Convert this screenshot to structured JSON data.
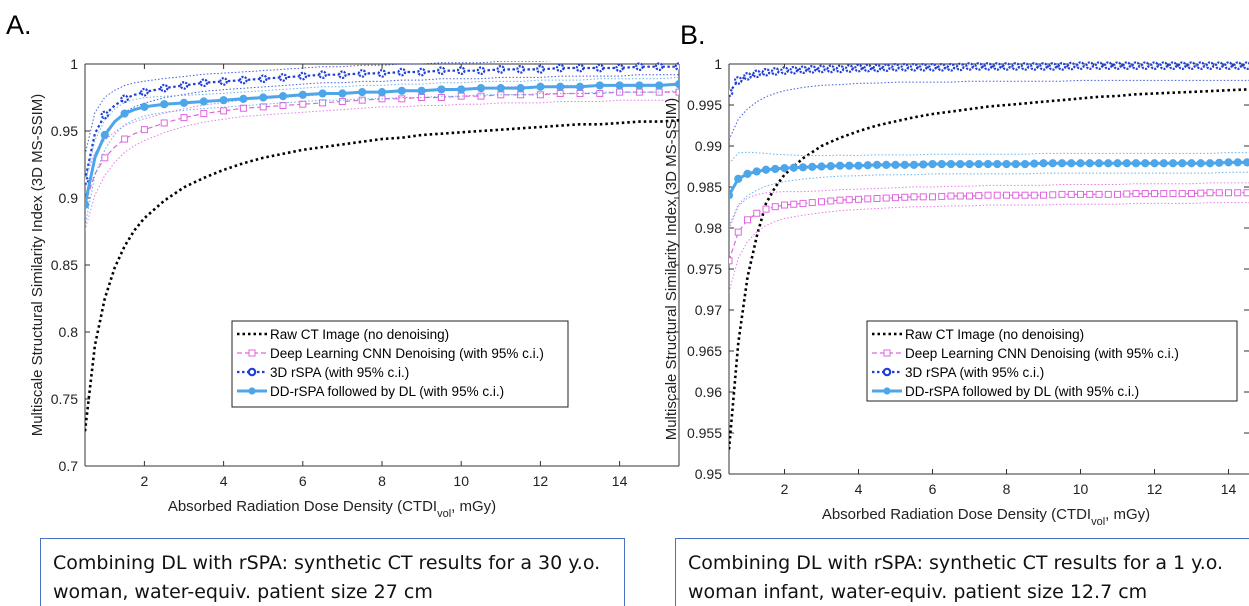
{
  "colors": {
    "raw": "#000000",
    "dl": "#e066e0",
    "rspa": "#1f3fd8",
    "ddrspa": "#4da6ea",
    "caption_border": "#4a72c4"
  },
  "chart_data": [
    {
      "panel": "A.",
      "type": "line",
      "xlabel": "Absorbed Radiation Dose Density (CTDI_vol, mGy)",
      "xlabel_main": "Absorbed Radiation Dose Density (CTDI",
      "xlabel_sub": "vol",
      "xlabel_tail": ", mGy)",
      "ylabel": "Multiscale Structural Similarity Index (3D MS-SSIM)",
      "xlim": [
        0.5,
        15.5
      ],
      "ylim": [
        0.7,
        1.0
      ],
      "xticks": [
        2,
        4,
        6,
        8,
        10,
        12,
        14
      ],
      "xtick_labels": [
        "2",
        "4",
        "6",
        "8",
        "10",
        "12",
        "14"
      ],
      "yticks": [
        0.7,
        0.75,
        0.8,
        0.85,
        0.9,
        0.95,
        1.0
      ],
      "ytick_labels": [
        "0.7",
        "0.75",
        "0.8",
        "0.85",
        "0.9",
        "0.95",
        "1"
      ],
      "legend_position": "lower-right",
      "x": [
        0.5,
        0.75,
        1.0,
        1.25,
        1.5,
        1.75,
        2.0,
        2.5,
        3.0,
        3.5,
        4.0,
        4.5,
        5.0,
        5.5,
        6.0,
        6.5,
        7.0,
        7.5,
        8.0,
        8.5,
        9.0,
        9.5,
        10.0,
        10.5,
        11.0,
        11.5,
        12.0,
        12.5,
        13.0,
        13.5,
        14.0,
        14.5,
        15.0,
        15.5
      ],
      "series": [
        {
          "name": "Raw CT Image (no denoising)",
          "style": "raw",
          "values": [
            0.726,
            0.79,
            0.825,
            0.848,
            0.864,
            0.876,
            0.885,
            0.898,
            0.908,
            0.915,
            0.921,
            0.926,
            0.93,
            0.933,
            0.936,
            0.938,
            0.94,
            0.942,
            0.944,
            0.945,
            0.947,
            0.948,
            0.949,
            0.95,
            0.951,
            0.952,
            0.953,
            0.954,
            0.955,
            0.955,
            0.956,
            0.957,
            0.957,
            0.958
          ]
        },
        {
          "name": "Deep Learning CNN Denoising (with 95% c.i.)",
          "style": "dl",
          "values": [
            0.895,
            0.918,
            0.93,
            0.938,
            0.944,
            0.948,
            0.951,
            0.956,
            0.96,
            0.963,
            0.965,
            0.967,
            0.968,
            0.969,
            0.97,
            0.971,
            0.972,
            0.973,
            0.974,
            0.974,
            0.975,
            0.975,
            0.976,
            0.976,
            0.977,
            0.977,
            0.977,
            0.978,
            0.978,
            0.978,
            0.979,
            0.979,
            0.979,
            0.979
          ],
          "ci": 0.006
        },
        {
          "name": "3D rSPA (with 95% c.i.)",
          "style": "rspa",
          "values": [
            0.913,
            0.948,
            0.962,
            0.969,
            0.974,
            0.977,
            0.979,
            0.982,
            0.984,
            0.986,
            0.987,
            0.988,
            0.989,
            0.99,
            0.991,
            0.992,
            0.992,
            0.993,
            0.993,
            0.994,
            0.994,
            0.995,
            0.995,
            0.995,
            0.996,
            0.996,
            0.996,
            0.997,
            0.997,
            0.997,
            0.997,
            0.998,
            0.998,
            0.998
          ],
          "ci": 0.006
        },
        {
          "name": "DD-rSPA followed by DL (with 95% c.i.)",
          "style": "ddrspa",
          "values": [
            0.895,
            0.93,
            0.947,
            0.957,
            0.963,
            0.966,
            0.968,
            0.97,
            0.971,
            0.972,
            0.973,
            0.974,
            0.975,
            0.976,
            0.977,
            0.978,
            0.978,
            0.979,
            0.979,
            0.98,
            0.98,
            0.981,
            0.981,
            0.982,
            0.982,
            0.982,
            0.983,
            0.983,
            0.983,
            0.984,
            0.984,
            0.984,
            0.984,
            0.985
          ],
          "ci": 0.005
        }
      ]
    },
    {
      "panel": "B.",
      "type": "line",
      "xlabel": "Absorbed Radiation Dose Density (CTDI_vol, mGy)",
      "xlabel_main": "Absorbed Radiation Dose Density (CTDI",
      "xlabel_sub": "vol",
      "xlabel_tail": ", mGy)",
      "ylabel": "Multiscale Structural Similarity Index (3D MS-SSIM)",
      "xlim": [
        0.5,
        15.5
      ],
      "ylim": [
        0.95,
        1.0
      ],
      "xticks": [
        2,
        4,
        6,
        8,
        10,
        12,
        14
      ],
      "xtick_labels": [
        "2",
        "4",
        "6",
        "8",
        "10",
        "12",
        "14"
      ],
      "yticks": [
        0.95,
        0.955,
        0.96,
        0.965,
        0.97,
        0.975,
        0.98,
        0.985,
        0.99,
        0.995,
        1.0
      ],
      "ytick_labels": [
        "0.95",
        "0.955",
        "0.96",
        "0.965",
        "0.97",
        "0.975",
        "0.98",
        "0.985",
        "0.99",
        "0.995",
        "1"
      ],
      "legend_position": "lower-right",
      "x": [
        0.5,
        0.75,
        1.0,
        1.25,
        1.5,
        1.75,
        2.0,
        2.5,
        3.0,
        3.5,
        4.0,
        4.5,
        5.0,
        5.5,
        6.0,
        6.5,
        7.0,
        7.5,
        8.0,
        8.5,
        9.0,
        9.5,
        10.0,
        10.5,
        11.0,
        11.5,
        12.0,
        12.5,
        13.0,
        13.5,
        14.0,
        14.5,
        15.0,
        15.5
      ],
      "series": [
        {
          "name": "Raw CT Image (no denoising)",
          "style": "raw",
          "values": [
            0.953,
            0.966,
            0.974,
            0.979,
            0.983,
            0.985,
            0.9865,
            0.9885,
            0.99,
            0.991,
            0.9918,
            0.9925,
            0.993,
            0.9935,
            0.9939,
            0.9942,
            0.9945,
            0.9948,
            0.995,
            0.9952,
            0.9954,
            0.9956,
            0.9958,
            0.996,
            0.9961,
            0.9963,
            0.9964,
            0.9965,
            0.9966,
            0.9967,
            0.9968,
            0.9969,
            0.997,
            0.9971
          ]
        },
        {
          "name": "Deep Learning CNN Denoising (with 95% c.i.)",
          "style": "dl",
          "values": [
            0.976,
            0.9795,
            0.981,
            0.9818,
            0.9823,
            0.9826,
            0.9828,
            0.983,
            0.9832,
            0.9834,
            0.9835,
            0.9836,
            0.9837,
            0.9838,
            0.9838,
            0.9839,
            0.9839,
            0.984,
            0.984,
            0.984,
            0.984,
            0.9841,
            0.9841,
            0.9841,
            0.9841,
            0.9842,
            0.9842,
            0.9842,
            0.9842,
            0.9843,
            0.9843,
            0.9843,
            0.9843,
            0.9843
          ],
          "ci": 0.0012
        },
        {
          "name": "3D rSPA (with 95% c.i.)",
          "style": "rspa",
          "values": [
            0.9965,
            0.998,
            0.9985,
            0.9988,
            0.999,
            0.9991,
            0.9992,
            0.9993,
            0.9994,
            0.9994,
            0.9995,
            0.9995,
            0.9996,
            0.9996,
            0.9996,
            0.9996,
            0.9997,
            0.9997,
            0.9997,
            0.9997,
            0.9997,
            0.9997,
            0.9998,
            0.9998,
            0.9998,
            0.9998,
            0.9998,
            0.9998,
            0.9998,
            0.9998,
            0.9998,
            0.9998,
            0.9998,
            0.9998
          ],
          "ci": 0.0018
        },
        {
          "name": "DD-rSPA followed by DL (with 95% c.i.)",
          "style": "ddrspa",
          "values": [
            0.984,
            0.986,
            0.9866,
            0.9869,
            0.9871,
            0.9872,
            0.9873,
            0.9874,
            0.9875,
            0.9876,
            0.9876,
            0.9877,
            0.9877,
            0.9877,
            0.9878,
            0.9878,
            0.9878,
            0.9878,
            0.9878,
            0.9878,
            0.9879,
            0.9879,
            0.9879,
            0.9879,
            0.9879,
            0.9879,
            0.9879,
            0.9879,
            0.9879,
            0.9879,
            0.988,
            0.988,
            0.988,
            0.988
          ],
          "ci": 0.0012
        }
      ]
    }
  ],
  "captions": [
    {
      "line1": "Combining DL with rSPA: synthetic CT results for a 30 y.o.",
      "line2": "woman, water-equiv. patient size 27 cm"
    },
    {
      "line1": "Combining DL with rSPA: synthetic CT results for a 1 y.o.",
      "line2": "woman infant, water-equiv. patient size 12.7 cm"
    }
  ]
}
